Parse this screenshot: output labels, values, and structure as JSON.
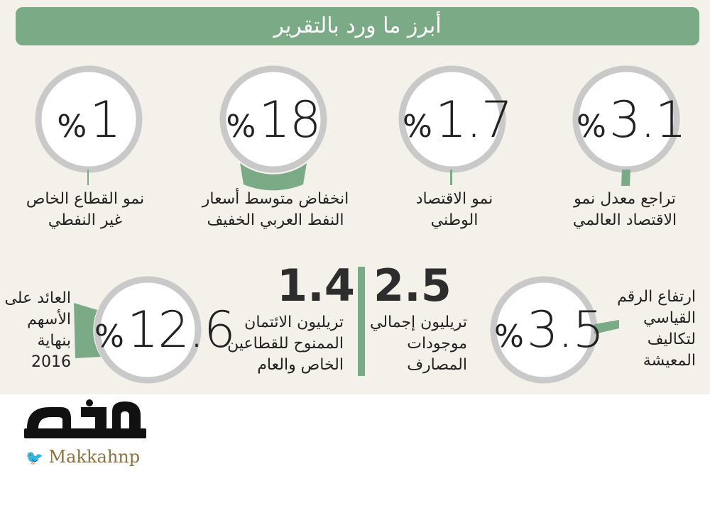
{
  "header": {
    "title": "أبرز ما ورد بالتقرير"
  },
  "stats_top": [
    {
      "value": "3.1",
      "percent": "%",
      "lines": [
        "تراجع معدل نمو",
        "الاقتصاد العالمي"
      ]
    },
    {
      "value": "1.7",
      "percent": "%",
      "lines": [
        "نمو الاقتصاد",
        "الوطني"
      ]
    },
    {
      "value": "18",
      "percent": "%",
      "lines": [
        "انخفاض متوسط أسعار",
        "النفط العربي الخفيف"
      ]
    },
    {
      "value": "1",
      "percent": "%",
      "lines": [
        "نمو القطاع الخاص",
        "غير النفطي"
      ]
    }
  ],
  "stats_bottom": {
    "cost_of_living": {
      "value": "3.5",
      "percent": "%",
      "lines": [
        "ارتفاع الرقم",
        "القياسي",
        "لتكاليف",
        "المعيشة"
      ]
    },
    "bank_assets": {
      "value": "2.5",
      "lines": [
        "تريليون إجمالي",
        "موجودات",
        "المصارف"
      ]
    },
    "credit": {
      "value": "1.4",
      "lines": [
        "تريليون الائتمان",
        "الممنوح للقطاعين",
        "الخاص والعام"
      ]
    },
    "stock_return": {
      "value": "12.6",
      "percent": "%",
      "lines": [
        "العائد على",
        "الأسهم",
        "بنهاية",
        "2016"
      ]
    }
  },
  "brand": {
    "logo_text": "مكة",
    "handle": "Makkahnp"
  },
  "colors": {
    "accent": "#7aab86",
    "ring": "#c9c9c9",
    "background": "#f4f1ea"
  }
}
